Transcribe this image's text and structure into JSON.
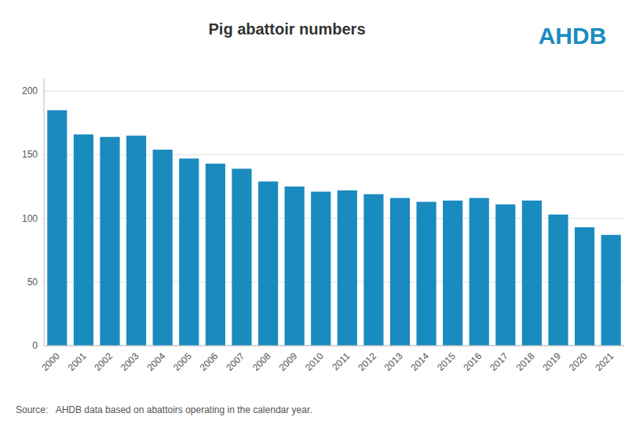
{
  "chart_data": {
    "type": "bar",
    "title": "Pig abattoir numbers",
    "categories": [
      "2000",
      "2001",
      "2002",
      "2003",
      "2004",
      "2005",
      "2006",
      "2007",
      "2008",
      "2009",
      "2010",
      "2011",
      "2012",
      "2013",
      "2014",
      "2015",
      "2016",
      "2017",
      "2018",
      "2019",
      "2020",
      "2021"
    ],
    "values": [
      185,
      166,
      164,
      165,
      154,
      147,
      143,
      139,
      129,
      125,
      121,
      122,
      119,
      116,
      113,
      114,
      116,
      111,
      114,
      103,
      93,
      87
    ],
    "color": "#1a8bbf",
    "ylim": [
      0,
      210
    ],
    "yticks": [
      0,
      50,
      100,
      150,
      200
    ],
    "grid": true,
    "annotations": [
      "Source:   AHDB data based on abattoirs operating in the calendar year.",
      "AHDB"
    ]
  }
}
